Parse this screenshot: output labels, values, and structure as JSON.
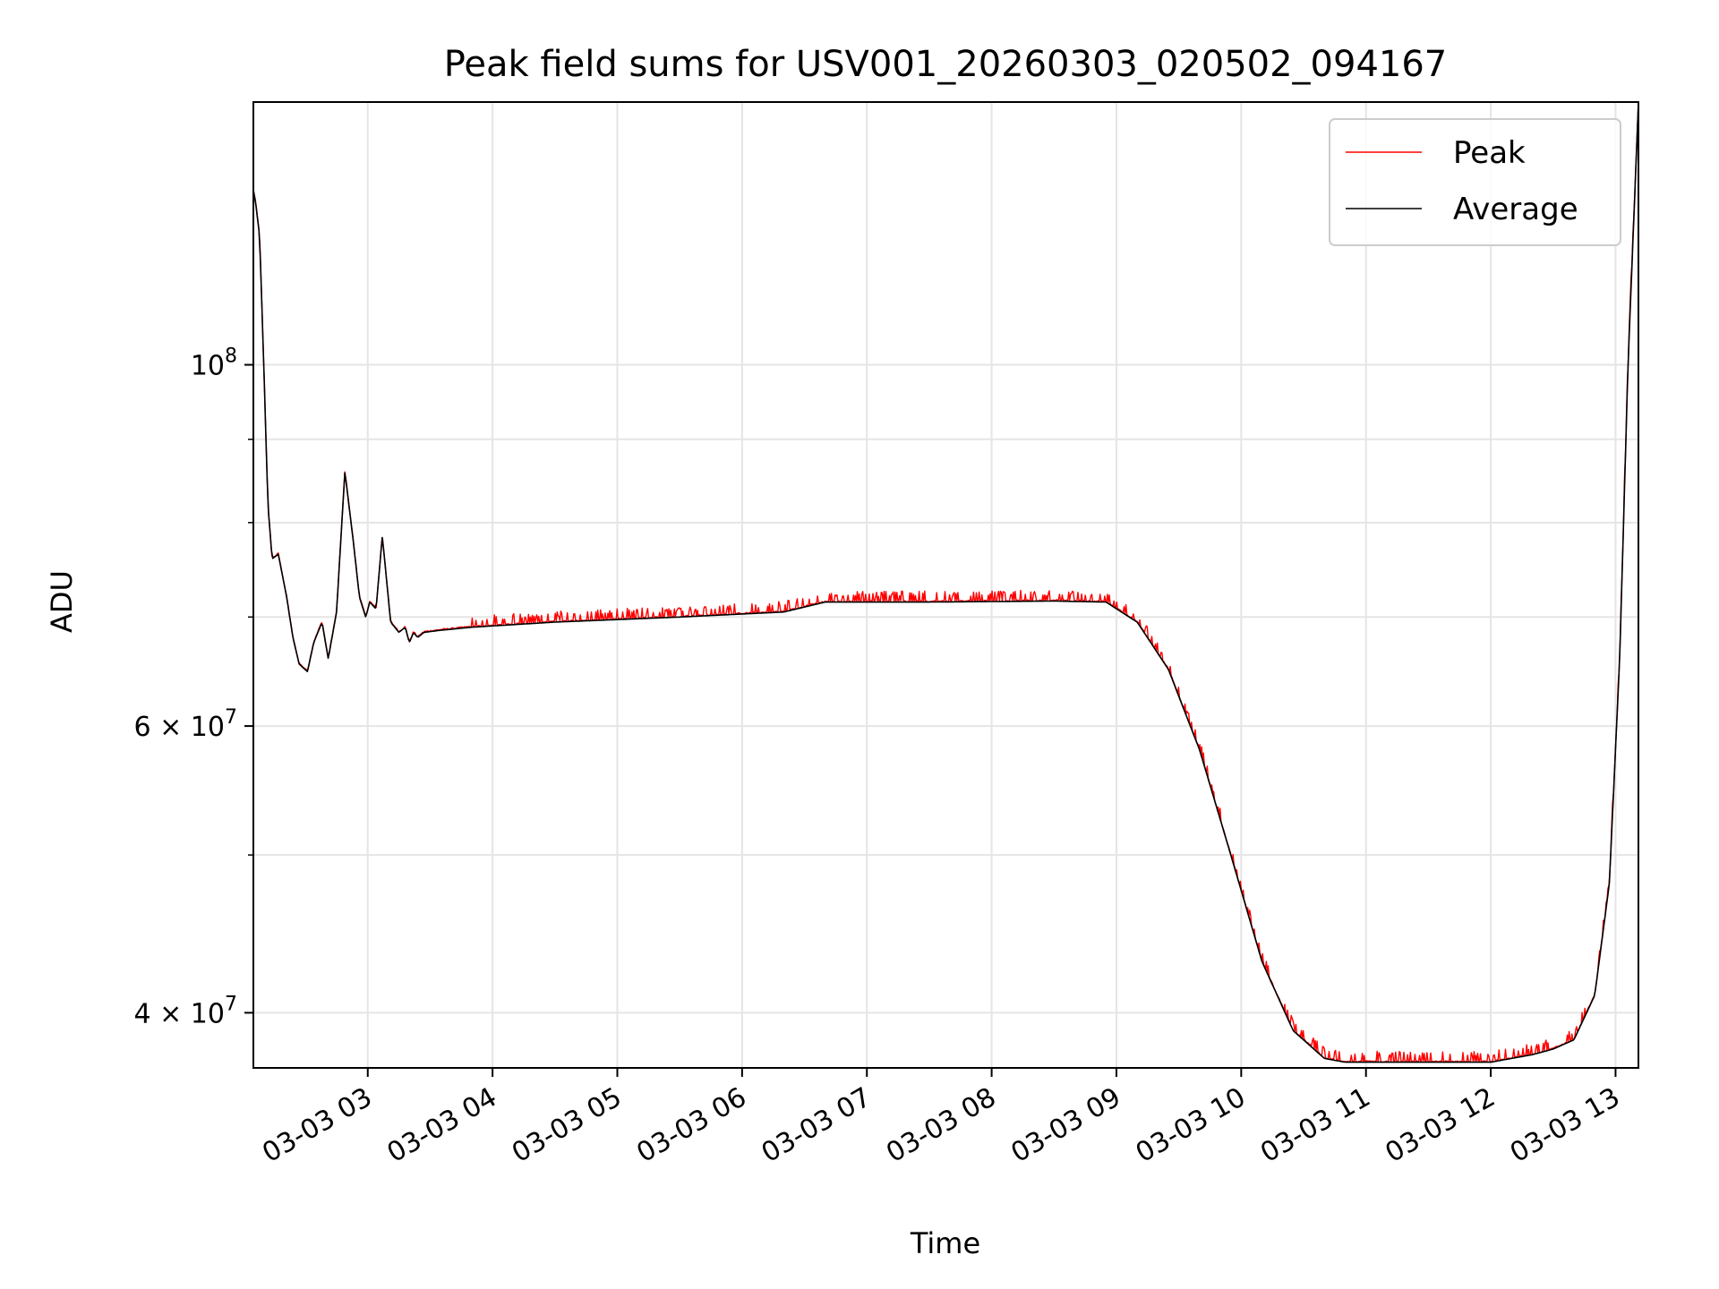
{
  "chart_data": {
    "type": "line",
    "title": "Peak field sums for USV001_20260303_020502_094167",
    "xlabel": "Time",
    "ylabel": "ADU",
    "yscale": "log",
    "xlim": [
      "2026-03-03T02:05",
      "2026-03-03T13:11"
    ],
    "ylim": [
      37000000,
      145000000
    ],
    "x_ticks": [
      "03-03 03",
      "03-03 04",
      "03-03 05",
      "03-03 06",
      "03-03 07",
      "03-03 08",
      "03-03 09",
      "03-03 10",
      "03-03 11",
      "03-03 12",
      "03-03 13"
    ],
    "x_tick_times": [
      "2026-03-03T03:00",
      "2026-03-03T04:00",
      "2026-03-03T05:00",
      "2026-03-03T06:00",
      "2026-03-03T07:00",
      "2026-03-03T08:00",
      "2026-03-03T09:00",
      "2026-03-03T10:00",
      "2026-03-03T11:00",
      "2026-03-03T12:00",
      "2026-03-03T13:00"
    ],
    "y_major_ticks": [
      {
        "value": 100000000,
        "base": "10",
        "exp": "8",
        "mantissa": ""
      },
      {
        "value": 60000000,
        "base": "10",
        "exp": "7",
        "mantissa": "6 × "
      },
      {
        "value": 40000000,
        "base": "10",
        "exp": "7",
        "mantissa": "4 × "
      }
    ],
    "y_minor_ticks": [
      50000000,
      70000000,
      80000000,
      90000000
    ],
    "grid": true,
    "legend_position": "top-right",
    "series": [
      {
        "name": "Average",
        "color": "#000000",
        "x": [
          "2026-03-03T02:05",
          "2026-03-03T02:06",
          "2026-03-03T02:08",
          "2026-03-03T02:10",
          "2026-03-03T02:12",
          "2026-03-03T02:14",
          "2026-03-03T02:17",
          "2026-03-03T02:21",
          "2026-03-03T02:24",
          "2026-03-03T02:27",
          "2026-03-03T02:31",
          "2026-03-03T02:34",
          "2026-03-03T02:38",
          "2026-03-03T02:41",
          "2026-03-03T02:45",
          "2026-03-03T02:49",
          "2026-03-03T02:53",
          "2026-03-03T02:56",
          "2026-03-03T02:59",
          "2026-03-03T03:01",
          "2026-03-03T03:04",
          "2026-03-03T03:07",
          "2026-03-03T03:11",
          "2026-03-03T03:15",
          "2026-03-03T03:18",
          "2026-03-03T03:20",
          "2026-03-03T03:22",
          "2026-03-03T03:24",
          "2026-03-03T03:27",
          "2026-03-03T03:31",
          "2026-03-03T03:35",
          "2026-03-03T03:40",
          "2026-03-03T03:50",
          "2026-03-03T04:30",
          "2026-03-03T05:30",
          "2026-03-03T06:20",
          "2026-03-03T06:40",
          "2026-03-03T07:30",
          "2026-03-03T08:30",
          "2026-03-03T08:55",
          "2026-03-03T09:10",
          "2026-03-03T09:25",
          "2026-03-03T09:40",
          "2026-03-03T09:55",
          "2026-03-03T10:10",
          "2026-03-03T10:25",
          "2026-03-03T10:40",
          "2026-03-03T10:50",
          "2026-03-03T11:00",
          "2026-03-03T12:00",
          "2026-03-03T12:20",
          "2026-03-03T12:30",
          "2026-03-03T12:40",
          "2026-03-03T12:50",
          "2026-03-03T12:57",
          "2026-03-03T13:02",
          "2026-03-03T13:06",
          "2026-03-03T13:11"
        ],
        "values": [
          128000000,
          126000000,
          120000000,
          100000000,
          82000000,
          76000000,
          76500000,
          72000000,
          68000000,
          65500000,
          64800000,
          67500000,
          69500000,
          66000000,
          70500000,
          86000000,
          78000000,
          72000000,
          70000000,
          71500000,
          70800000,
          78500000,
          69500000,
          68500000,
          69000000,
          67500000,
          68500000,
          68000000,
          68500000,
          68600000,
          68700000,
          68800000,
          69000000,
          69500000,
          70000000,
          70500000,
          71500000,
          71500000,
          71600000,
          71500000,
          69500000,
          65000000,
          58000000,
          50000000,
          43000000,
          39000000,
          37500000,
          37300000,
          37300000,
          37300000,
          37700000,
          38000000,
          38500000,
          41000000,
          48000000,
          66000000,
          100000000,
          145000000
        ]
      },
      {
        "name": "Peak",
        "color": "#ff0000",
        "spike_offset_ratio": 0.013
      }
    ]
  }
}
